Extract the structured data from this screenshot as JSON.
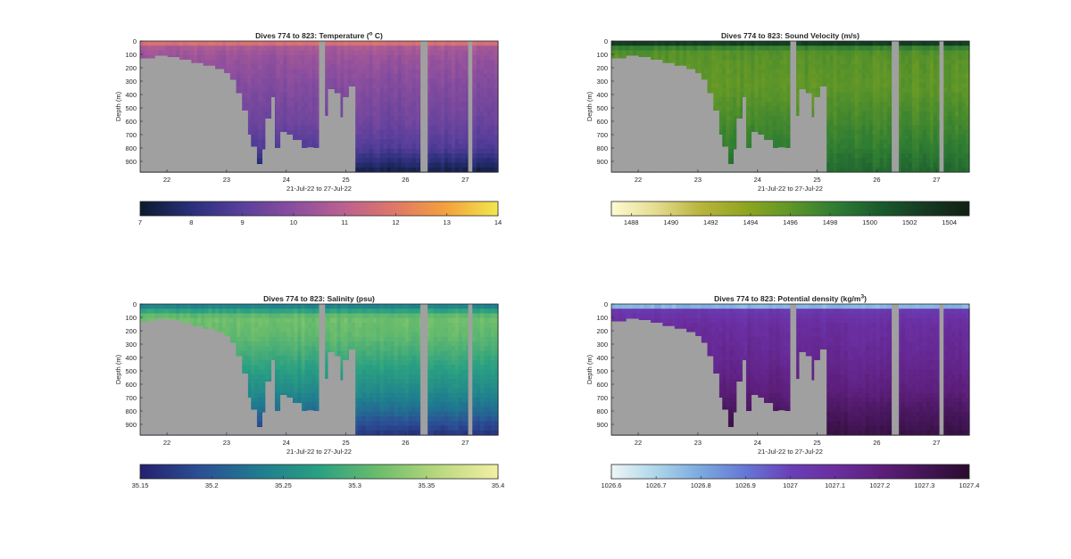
{
  "figure": {
    "time_label": "21-Jul-22 to 27-Jul-22",
    "ylabel": "Depth (m)"
  },
  "chart_data": [
    {
      "type": "heatmap",
      "title": "Dives 774 to 823: Temperature (",
      "title_sup": "o",
      "title_tail": " C)",
      "xlabel": "21-Jul-22 to 27-Jul-22",
      "ylabel": "Depth (m)",
      "xlim": [
        21.55,
        27.55
      ],
      "ylim": [
        0,
        980
      ],
      "x_ticks": [
        22,
        23,
        24,
        25,
        26,
        27
      ],
      "x_tick_labels": [
        "22",
        "23",
        "24",
        "25",
        "26",
        "27"
      ],
      "y_ticks": [
        0,
        100,
        200,
        300,
        400,
        500,
        600,
        700,
        800,
        900
      ],
      "y_tick_labels": [
        "0",
        "100",
        "200",
        "300",
        "400",
        "500",
        "600",
        "700",
        "800",
        "900"
      ],
      "colorbar": {
        "min": 7,
        "max": 14,
        "ticks": [
          7,
          8,
          9,
          10,
          11,
          12,
          13,
          14
        ],
        "tick_labels": [
          "7",
          "8",
          "9",
          "10",
          "11",
          "12",
          "13",
          "14"
        ],
        "colormap": [
          "#0b1a2d",
          "#2a2f7a",
          "#5a3f9c",
          "#8b4e9e",
          "#bb6190",
          "#e07867",
          "#f3a23d",
          "#f0e84e"
        ]
      },
      "profile": [
        [
          0,
          14
        ],
        [
          8,
          13.2
        ],
        [
          20,
          11.3
        ],
        [
          50,
          10.6
        ],
        [
          120,
          10.3
        ],
        [
          300,
          9.9
        ],
        [
          600,
          9.4
        ],
        [
          800,
          8.8
        ],
        [
          900,
          8.0
        ],
        [
          980,
          7.3
        ]
      ],
      "gap_color": "#a0a0a0"
    },
    {
      "type": "heatmap",
      "title": "Dives 774 to 823: Sound Velocity (m/s)",
      "xlabel": "21-Jul-22 to 27-Jul-22",
      "ylabel": "Depth (m)",
      "xlim": [
        21.55,
        27.55
      ],
      "ylim": [
        0,
        980
      ],
      "x_ticks": [
        22,
        23,
        24,
        25,
        26,
        27
      ],
      "x_tick_labels": [
        "22",
        "23",
        "24",
        "25",
        "26",
        "27"
      ],
      "y_ticks": [
        0,
        100,
        200,
        300,
        400,
        500,
        600,
        700,
        800,
        900
      ],
      "y_tick_labels": [
        "0",
        "100",
        "200",
        "300",
        "400",
        "500",
        "600",
        "700",
        "800",
        "900"
      ],
      "colorbar": {
        "min": 1487,
        "max": 1505,
        "ticks": [
          1488,
          1490,
          1492,
          1494,
          1496,
          1498,
          1500,
          1502,
          1504
        ],
        "tick_labels": [
          "1488",
          "1490",
          "1492",
          "1494",
          "1496",
          "1498",
          "1500",
          "1502",
          "1504"
        ],
        "colormap": [
          "#fdfbd3",
          "#e4dc8e",
          "#b8b43c",
          "#8fa61f",
          "#5f9628",
          "#2f7d33",
          "#1a5b2e",
          "#163a22",
          "#111f14"
        ]
      },
      "profile": [
        [
          0,
          1504.5
        ],
        [
          15,
          1503
        ],
        [
          35,
          1499
        ],
        [
          70,
          1496.6
        ],
        [
          150,
          1496.2
        ],
        [
          350,
          1496.0
        ],
        [
          600,
          1497.2
        ],
        [
          800,
          1498.2
        ],
        [
          980,
          1499.6
        ]
      ],
      "gap_color": "#a0a0a0"
    },
    {
      "type": "heatmap",
      "title": "Dives 774 to 823: Salinity (psu)",
      "xlabel": "21-Jul-22 to 27-Jul-22",
      "ylabel": "Depth (m)",
      "xlim": [
        21.55,
        27.55
      ],
      "ylim": [
        0,
        980
      ],
      "x_ticks": [
        22,
        23,
        24,
        25,
        26,
        27
      ],
      "x_tick_labels": [
        "22",
        "23",
        "24",
        "25",
        "26",
        "27"
      ],
      "y_ticks": [
        0,
        100,
        200,
        300,
        400,
        500,
        600,
        700,
        800,
        900
      ],
      "y_tick_labels": [
        "0",
        "100",
        "200",
        "300",
        "400",
        "500",
        "600",
        "700",
        "800",
        "900"
      ],
      "colorbar": {
        "min": 35.15,
        "max": 35.4,
        "ticks": [
          35.15,
          35.2,
          35.25,
          35.3,
          35.35,
          35.4
        ],
        "tick_labels": [
          "35.15",
          "35.2",
          "35.25",
          "35.3",
          "35.35",
          "35.4"
        ],
        "colormap": [
          "#25206e",
          "#2b4f95",
          "#1f7c8f",
          "#2aa082",
          "#6cbd6b",
          "#b9d87e",
          "#f3f0a5"
        ]
      },
      "profile": [
        [
          0,
          35.22
        ],
        [
          30,
          35.26
        ],
        [
          100,
          35.32
        ],
        [
          250,
          35.31
        ],
        [
          450,
          35.28
        ],
        [
          650,
          35.25
        ],
        [
          800,
          35.22
        ],
        [
          900,
          35.19
        ],
        [
          980,
          35.17
        ]
      ],
      "gap_color": "#a0a0a0"
    },
    {
      "type": "heatmap",
      "title": "Dives 774 to 823: Potential density (kg/m",
      "title_sup": "3",
      "title_tail": ")",
      "xlabel": "21-Jul-22 to 27-Jul-22",
      "ylabel": "Depth (m)",
      "xlim": [
        21.55,
        27.55
      ],
      "ylim": [
        0,
        980
      ],
      "x_ticks": [
        22,
        23,
        24,
        25,
        26,
        27
      ],
      "x_tick_labels": [
        "22",
        "23",
        "24",
        "25",
        "26",
        "27"
      ],
      "y_ticks": [
        0,
        100,
        200,
        300,
        400,
        500,
        600,
        700,
        800,
        900
      ],
      "y_tick_labels": [
        "0",
        "100",
        "200",
        "300",
        "400",
        "500",
        "600",
        "700",
        "800",
        "900"
      ],
      "colorbar": {
        "min": 1026.6,
        "max": 1027.4,
        "ticks": [
          1026.6,
          1026.7,
          1026.8,
          1026.9,
          1027,
          1027.1,
          1027.2,
          1027.3,
          1027.4
        ],
        "tick_labels": [
          "1026.6",
          "1026.7",
          "1026.8",
          "1026.9",
          "1027",
          "1027.1",
          "1027.2",
          "1027.3",
          "1027.4"
        ],
        "colormap": [
          "#eef6f6",
          "#aed5ea",
          "#7aa9de",
          "#6677d6",
          "#6a3fb8",
          "#6a2ea0",
          "#5d1f7c",
          "#431556",
          "#2a0b2e"
        ]
      },
      "profile": [
        [
          0,
          1026.6
        ],
        [
          25,
          1026.85
        ],
        [
          50,
          1027.04
        ],
        [
          150,
          1027.1
        ],
        [
          400,
          1027.14
        ],
        [
          650,
          1027.2
        ],
        [
          800,
          1027.27
        ],
        [
          980,
          1027.34
        ]
      ],
      "gap_color": "#a0a0a0"
    }
  ]
}
